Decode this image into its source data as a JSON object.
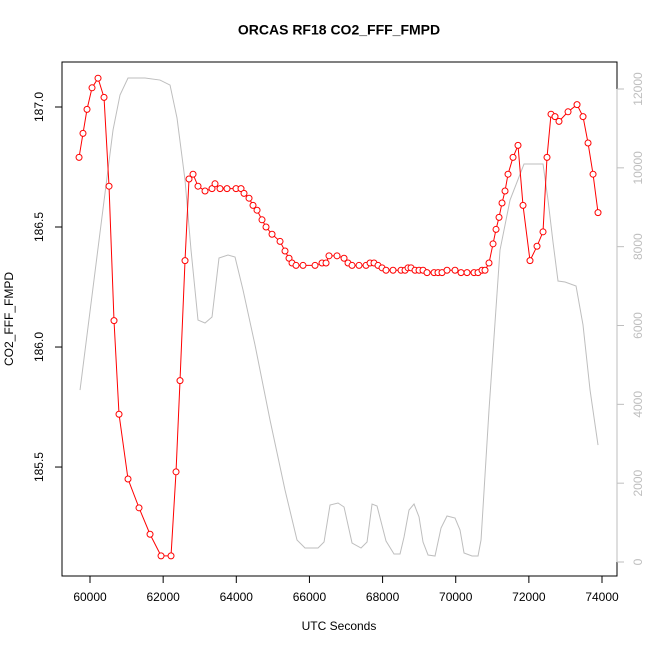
{
  "chart_data": {
    "type": "line",
    "title": "ORCAS RF18 CO2_FFF_FMPD",
    "x_label": "UTC Seconds",
    "y_label": "CO2_FFF_FMPD",
    "xlim": [
      59234,
      74410
    ],
    "ylim": [
      185.046,
      187.1875
    ],
    "y2lim": [
      -355,
      12685
    ],
    "xticks": [
      60000,
      62000,
      64000,
      66000,
      68000,
      70000,
      72000,
      74000
    ],
    "yticks": [
      185.5,
      {
        "value": 186,
        "label": "186.0"
      },
      186.5,
      {
        "value": 187,
        "label": "187.0"
      }
    ],
    "y2ticks": [
      0,
      2000,
      4000,
      6000,
      8000,
      10000,
      12000
    ],
    "y2_color": "#bebebe",
    "grid": false,
    "series": [
      {
        "color": "#ff0000",
        "marker": "circle",
        "axis": "y",
        "x": [
          59700,
          59808,
          59918,
          60055,
          60219,
          60383,
          60520,
          60656,
          60793,
          61039,
          61340,
          61641,
          61942,
          62215,
          62352,
          62461,
          62598,
          62707,
          62817,
          62953,
          63145,
          63336,
          63418,
          63555,
          63746,
          63992,
          64129,
          64211,
          64348,
          64457,
          64567,
          64703,
          64813,
          64977,
          65196,
          65332,
          65442,
          65524,
          65633,
          65824,
          66153,
          66344,
          66454,
          66535,
          66754,
          66946,
          67055,
          67165,
          67356,
          67547,
          67657,
          67766,
          67875,
          67985,
          68094,
          68286,
          68504,
          68614,
          68696,
          68778,
          68887,
          68997,
          69106,
          69215,
          69407,
          69516,
          69625,
          69762,
          69981,
          70145,
          70309,
          70500,
          70610,
          70719,
          70801,
          70910,
          71020,
          71102,
          71184,
          71266,
          71348,
          71430,
          71567,
          71703,
          71840,
          72031,
          72223,
          72387,
          72496,
          72606,
          72715,
          72824,
          73071,
          73317,
          73481,
          73618,
          73755,
          73891
        ],
        "values": [
          186.79,
          186.89,
          186.99,
          187.08,
          187.12,
          187.04,
          186.67,
          186.11,
          185.72,
          185.45,
          185.33,
          185.22,
          185.13,
          185.13,
          185.48,
          185.86,
          186.36,
          186.7,
          186.72,
          186.67,
          186.65,
          186.66,
          186.68,
          186.66,
          186.66,
          186.66,
          186.66,
          186.64,
          186.62,
          186.59,
          186.57,
          186.53,
          186.5,
          186.47,
          186.44,
          186.4,
          186.37,
          186.35,
          186.34,
          186.34,
          186.34,
          186.35,
          186.35,
          186.38,
          186.38,
          186.37,
          186.35,
          186.34,
          186.34,
          186.34,
          186.35,
          186.35,
          186.34,
          186.33,
          186.32,
          186.32,
          186.32,
          186.32,
          186.33,
          186.33,
          186.32,
          186.32,
          186.32,
          186.31,
          186.31,
          186.31,
          186.31,
          186.32,
          186.32,
          186.31,
          186.31,
          186.31,
          186.31,
          186.32,
          186.32,
          186.35,
          186.43,
          186.49,
          186.54,
          186.6,
          186.65,
          186.72,
          186.79,
          186.84,
          186.59,
          186.36,
          186.42,
          186.48,
          186.79,
          186.97,
          186.96,
          186.94,
          186.98,
          187.01,
          186.96,
          186.85,
          186.72,
          186.56
        ]
      },
      {
        "color": "#bebebe",
        "axis": "y2",
        "x": [
          59727,
          60629,
          60820,
          61039,
          61504,
          61914,
          62188,
          62379,
          62598,
          62762,
          62953,
          63145,
          63336,
          63527,
          63773,
          63965,
          64184,
          64512,
          64922,
          65332,
          65660,
          65879,
          66235,
          66399,
          66563,
          66782,
          66946,
          67165,
          67411,
          67575,
          67712,
          67848,
          68094,
          68313,
          68477,
          68587,
          68723,
          68860,
          68997,
          69106,
          69243,
          69434,
          69598,
          69762,
          69981,
          70118,
          70227,
          70446,
          70610,
          70692,
          70910,
          71211,
          71485,
          71867,
          72059,
          72387,
          72524,
          72660,
          72797,
          72989,
          73290,
          73481,
          73673,
          73891
        ],
        "values": [
          4363,
          10959,
          11847,
          12278,
          12278,
          12227,
          12100,
          11263,
          9690,
          7915,
          6139,
          6063,
          6215,
          7712,
          7788,
          7737,
          6900,
          5505,
          3602,
          1826,
          558,
          355,
          355,
          507,
          1446,
          1497,
          1395,
          482,
          355,
          507,
          1471,
          1421,
          533,
          203,
          203,
          634,
          1319,
          1471,
          1142,
          507,
          178,
          152,
          862,
          1167,
          1116,
          812,
          228,
          152,
          152,
          558,
          3856,
          7915,
          9183,
          10096,
          10096,
          10096,
          9183,
          8118,
          7128,
          7103,
          7002,
          6012,
          4363,
          2968
        ]
      }
    ]
  }
}
